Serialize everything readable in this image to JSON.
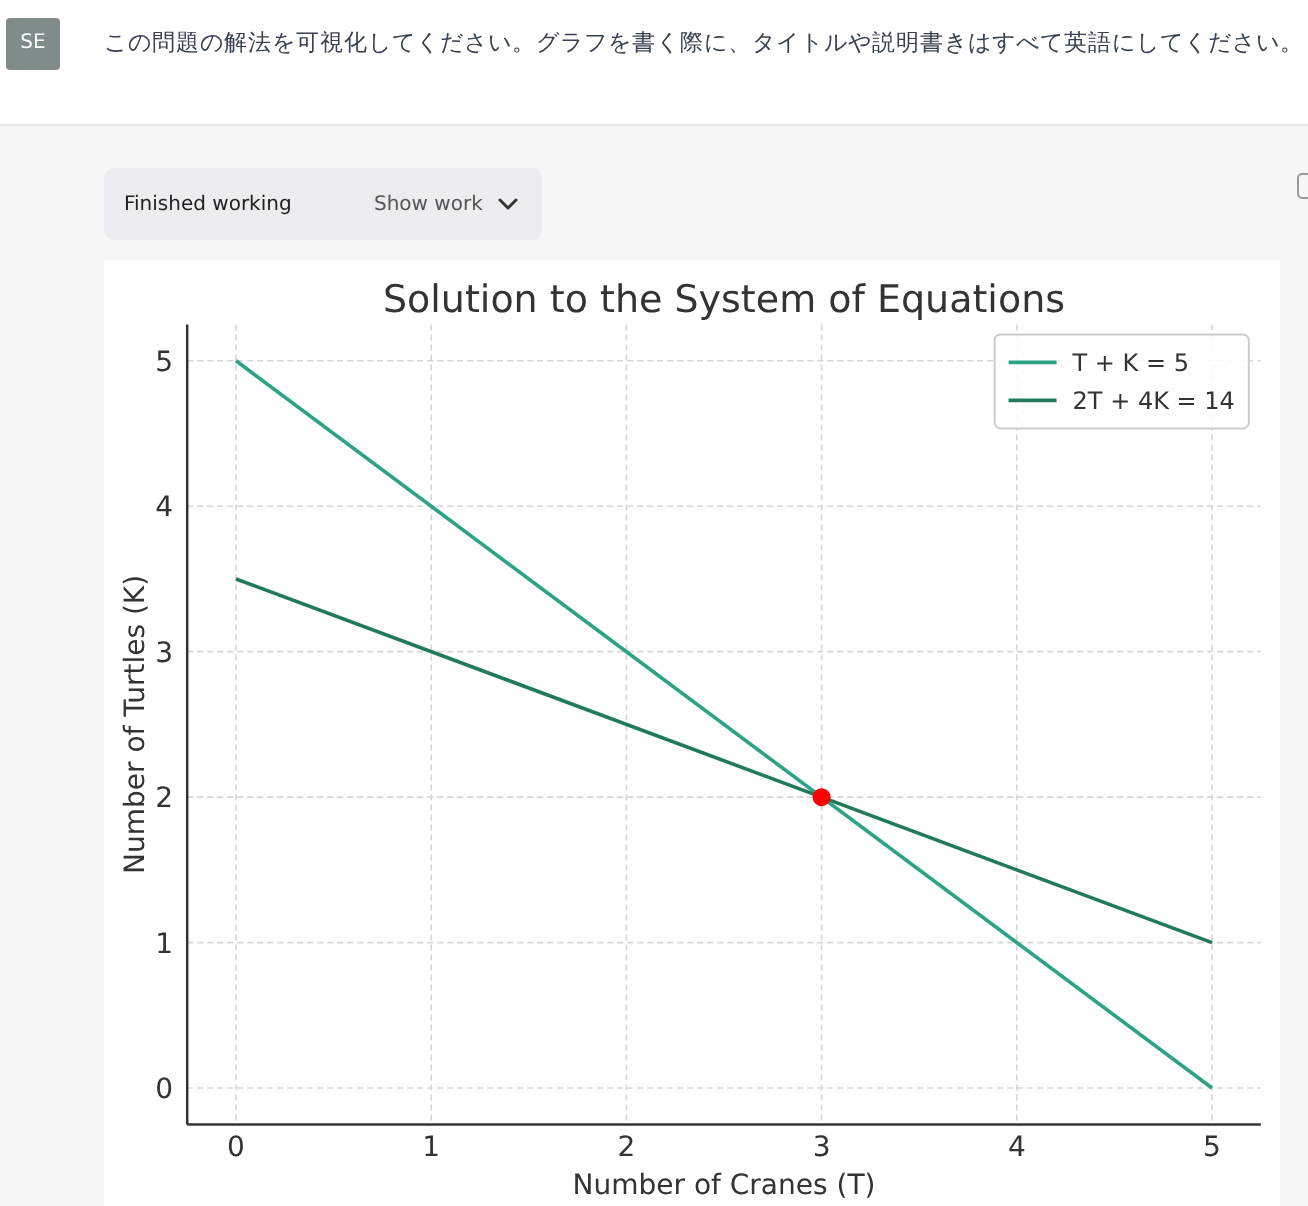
{
  "chart_data": {
    "type": "line",
    "title": "Solution to the System of Equations",
    "xlabel": "Number of Cranes (T)",
    "ylabel": "Number of Turtles (K)",
    "x": [
      0,
      5
    ],
    "series": [
      {
        "name": "T + K = 5",
        "color": "#2ca384",
        "values": [
          5,
          0
        ]
      },
      {
        "name": "2T + 4K = 14",
        "color": "#237a5b",
        "values": [
          3.5,
          1
        ]
      },
      {
        "type": "scatter",
        "x": [
          3
        ],
        "values": [
          2
        ],
        "color": "#ff0000",
        "marker": "circle"
      }
    ],
    "xlim": [
      -0.25,
      5.25
    ],
    "ylim": [
      -0.25,
      5.25
    ],
    "xticks": [
      0,
      1,
      2,
      3,
      4,
      5
    ],
    "yticks": [
      0,
      1,
      2,
      3,
      4,
      5
    ],
    "grid": true,
    "legend": "top right",
    "annotations": [
      "SE",
      "この問題の解法を可視化してください。グラフを書く際に、タイトルや説明書きはすべて英語にしてください。",
      "Finished working",
      "Show work"
    ]
  }
}
